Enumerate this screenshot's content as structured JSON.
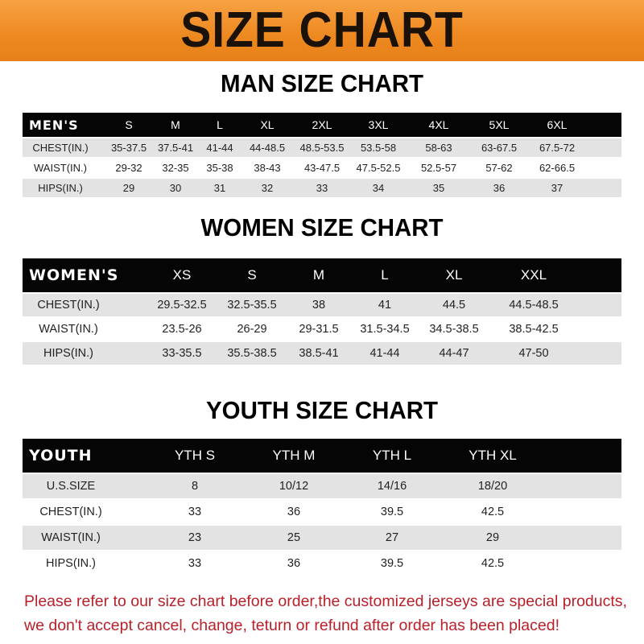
{
  "banner": {
    "title": "SIZE CHART"
  },
  "men": {
    "title": "MAN SIZE CHART",
    "header": [
      "MEN'S",
      "S",
      "M",
      "L",
      "XL",
      "2XL",
      "3XL",
      "4XL",
      "5XL",
      "6XL"
    ],
    "rows": [
      [
        "CHEST(IN.)",
        "35-37.5",
        "37.5-41",
        "41-44",
        "44-48.5",
        "48.5-53.5",
        "53.5-58",
        "58-63",
        "63-67.5",
        "67.5-72"
      ],
      [
        "WAIST(IN.)",
        "29-32",
        "32-35",
        "35-38",
        "38-43",
        "43-47.5",
        "47.5-52.5",
        "52.5-57",
        "57-62",
        "62-66.5"
      ],
      [
        "HIPS(IN.)",
        "29",
        "30",
        "31",
        "32",
        "33",
        "34",
        "35",
        "36",
        "37"
      ]
    ]
  },
  "women": {
    "title": "WOMEN SIZE CHART",
    "header": [
      "WOMEN'S",
      "XS",
      "S",
      "M",
      "L",
      "XL",
      "XXL"
    ],
    "rows": [
      [
        "CHEST(IN.)",
        "29.5-32.5",
        "32.5-35.5",
        "38",
        "41",
        "44.5",
        "44.5-48.5"
      ],
      [
        "WAIST(IN.)",
        "23.5-26",
        "26-29",
        "29-31.5",
        "31.5-34.5",
        "34.5-38.5",
        "38.5-42.5"
      ],
      [
        "HIPS(IN.)",
        "33-35.5",
        "35.5-38.5",
        "38.5-41",
        "41-44",
        "44-47",
        "47-50"
      ]
    ]
  },
  "youth": {
    "title": "YOUTH SIZE CHART",
    "header": [
      "YOUTH",
      "YTH S",
      "YTH M",
      "YTH L",
      "YTH XL"
    ],
    "rows": [
      [
        "U.S.SIZE",
        "8",
        "10/12",
        "14/16",
        "18/20"
      ],
      [
        "CHEST(IN.)",
        "33",
        "36",
        "39.5",
        "42.5"
      ],
      [
        "WAIST(IN.)",
        "23",
        "25",
        "27",
        "29"
      ],
      [
        "HIPS(IN.)",
        "33",
        "36",
        "39.5",
        "42.5"
      ]
    ]
  },
  "footer": {
    "line1": "Please refer to our size chart before order,the customized jerseys are special products,",
    "line2": "we don't accept cancel, change, teturn or refund after order has been placed!",
    "color": "#b8202a"
  },
  "colors": {
    "banner": "#ee8a22",
    "header_row": "#050505",
    "stripe": "#e3e3e4"
  }
}
